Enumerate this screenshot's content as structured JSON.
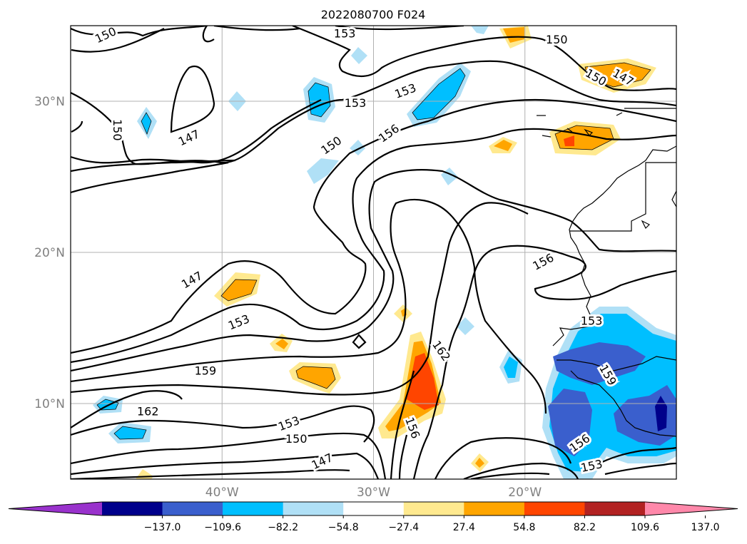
{
  "title": "2022080700 F024",
  "map": {
    "lat_ticks": [
      "30°N",
      "20°N",
      "10°N"
    ],
    "lon_ticks": [
      "40°W",
      "30°W",
      "20°W"
    ],
    "extent": {
      "lon_min": -50,
      "lon_max": -10,
      "lat_min": 5,
      "lat_max": 35
    },
    "grid": true
  },
  "contour_labels": [
    {
      "text": "150",
      "lon": -47.7,
      "lat": 34.4,
      "rot": -25
    },
    {
      "text": "153",
      "lon": -31.9,
      "lat": 34.5,
      "rot": 0
    },
    {
      "text": "150",
      "lon": -17.9,
      "lat": 34.1,
      "rot": 0
    },
    {
      "text": "150",
      "lon": -15.3,
      "lat": 31.6,
      "rot": 30
    },
    {
      "text": "147",
      "lon": -13.5,
      "lat": 31.6,
      "rot": 30
    },
    {
      "text": "153",
      "lon": -27.9,
      "lat": 30.7,
      "rot": -20
    },
    {
      "text": "153",
      "lon": -31.2,
      "lat": 29.9,
      "rot": 0
    },
    {
      "text": "150",
      "lon": -46.9,
      "lat": 28.1,
      "rot": 90
    },
    {
      "text": "147",
      "lon": -42.2,
      "lat": 27.6,
      "rot": -25
    },
    {
      "text": "156",
      "lon": -29.0,
      "lat": 27.9,
      "rot": -35
    },
    {
      "text": "150",
      "lon": -32.8,
      "lat": 27.1,
      "rot": -35
    },
    {
      "text": "156",
      "lon": -18.8,
      "lat": 19.4,
      "rot": -28
    },
    {
      "text": "147",
      "lon": -42.0,
      "lat": 18.2,
      "rot": -30
    },
    {
      "text": "153",
      "lon": -15.6,
      "lat": 15.5,
      "rot": 0
    },
    {
      "text": "153",
      "lon": -38.9,
      "lat": 15.4,
      "rot": -22
    },
    {
      "text": "162",
      "lon": -25.5,
      "lat": 13.5,
      "rot": 55
    },
    {
      "text": "159",
      "lon": -41.1,
      "lat": 12.2,
      "rot": 0
    },
    {
      "text": "159",
      "lon": -14.5,
      "lat": 11.9,
      "rot": 60
    },
    {
      "text": "162",
      "lon": -44.9,
      "lat": 9.5,
      "rot": 0
    },
    {
      "text": "153",
      "lon": -35.6,
      "lat": 8.7,
      "rot": -20
    },
    {
      "text": "156",
      "lon": -27.4,
      "lat": 8.4,
      "rot": 70
    },
    {
      "text": "150",
      "lon": -35.1,
      "lat": 7.7,
      "rot": 0
    },
    {
      "text": "156",
      "lon": -16.4,
      "lat": 7.4,
      "rot": -35
    },
    {
      "text": "147",
      "lon": -33.4,
      "lat": 6.2,
      "rot": -25
    },
    {
      "text": "153",
      "lon": -15.6,
      "lat": 5.9,
      "rot": -12
    }
  ],
  "colorbar": {
    "tick_labels": [
      "−137.0",
      "−109.6",
      "−82.2",
      "−54.8",
      "−27.4",
      "27.4",
      "54.8",
      "82.2",
      "109.6",
      "137.0"
    ],
    "colors": [
      "#9932cc",
      "#00008b",
      "#3a5fcd",
      "#00bfff",
      "#b0e0f6",
      "#ffffff",
      "#ffe98f",
      "#ffa500",
      "#ff4500",
      "#b22222",
      "#ff88aa"
    ],
    "extend": "both"
  }
}
